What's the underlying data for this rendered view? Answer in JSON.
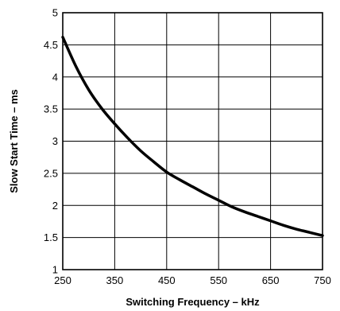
{
  "chart_data": {
    "type": "line",
    "xlabel": "Switching Frequency – kHz",
    "ylabel": "Slow Start Time – ms",
    "xlim": [
      250,
      750
    ],
    "ylim": [
      1,
      5
    ],
    "x_ticks": [
      250,
      350,
      450,
      550,
      650,
      750
    ],
    "y_ticks": [
      1,
      1.5,
      2,
      2.5,
      3,
      3.5,
      4,
      4.5,
      5
    ],
    "x_tick_labels": [
      "250",
      "350",
      "450",
      "550",
      "650",
      "750"
    ],
    "y_tick_labels": [
      "1",
      "1.5",
      "2",
      "2.5",
      "3",
      "3.5",
      "4",
      "4.5",
      "5"
    ],
    "grid": true,
    "series": [
      {
        "x": [
          250,
          275,
          300,
          325,
          350,
          375,
          400,
          425,
          450,
          475,
          500,
          525,
          550,
          575,
          600,
          625,
          650,
          675,
          700,
          725,
          750
        ],
        "y": [
          4.62,
          4.17,
          3.8,
          3.51,
          3.27,
          3.05,
          2.85,
          2.68,
          2.52,
          2.4,
          2.29,
          2.18,
          2.08,
          1.98,
          1.9,
          1.83,
          1.76,
          1.69,
          1.63,
          1.58,
          1.53
        ]
      }
    ],
    "colors": {
      "line": "#000000",
      "grid": "#000000",
      "frame": "#000000"
    }
  }
}
